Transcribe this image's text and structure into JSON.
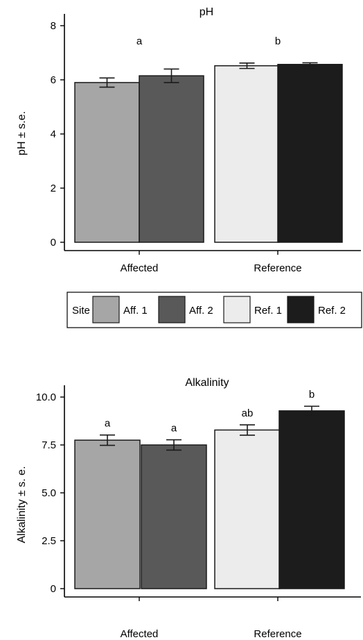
{
  "chart_data": [
    {
      "type": "bar",
      "title": "pH",
      "ylabel": "pH ± s.e.",
      "xlabel": "",
      "categories": [
        "Affected",
        "Reference"
      ],
      "ylim": [
        0,
        8
      ],
      "yticks": [
        0,
        2,
        4,
        6,
        8
      ],
      "ytick_labels": [
        "0",
        "2",
        "4",
        "6",
        "8"
      ],
      "bars": [
        {
          "site": "Aff. 1",
          "category": "Affected",
          "value": 5.9,
          "se": 0.17,
          "color": "#a6a6a6"
        },
        {
          "site": "Aff. 2",
          "category": "Affected",
          "value": 6.15,
          "se": 0.25,
          "color": "#595959"
        },
        {
          "site": "Ref. 1",
          "category": "Reference",
          "value": 6.52,
          "se": 0.1,
          "color": "#ececec"
        },
        {
          "site": "Ref. 2",
          "category": "Reference",
          "value": 6.57,
          "se": 0.06,
          "color": "#1c1c1c"
        }
      ],
      "group_labels": [
        {
          "category": "Affected",
          "text": "a"
        },
        {
          "category": "Reference",
          "text": "b"
        }
      ],
      "grid": false,
      "legend": "between-panels"
    },
    {
      "type": "bar",
      "title": "Alkalinity",
      "ylabel": "Alkalinity ± s. e.",
      "xlabel": "",
      "categories": [
        "Affected",
        "Reference"
      ],
      "ylim": [
        0,
        10
      ],
      "yticks": [
        0,
        2.5,
        5,
        7.5,
        10
      ],
      "ytick_labels": [
        "0",
        "2.5",
        "5.0",
        "7.5",
        "10.0"
      ],
      "bars": [
        {
          "site": "Aff. 1",
          "category": "Affected",
          "value": 7.75,
          "se": 0.27,
          "color": "#a6a6a6",
          "label": "a"
        },
        {
          "site": "Aff. 2",
          "category": "Affected",
          "value": 7.5,
          "se": 0.27,
          "color": "#595959",
          "label": "a"
        },
        {
          "site": "Ref. 1",
          "category": "Reference",
          "value": 8.28,
          "se": 0.27,
          "color": "#ececec",
          "label": "ab"
        },
        {
          "site": "Ref. 2",
          "category": "Reference",
          "value": 9.28,
          "se": 0.24,
          "color": "#1c1c1c",
          "label": "b"
        }
      ],
      "grid": false,
      "legend": "between-panels"
    }
  ],
  "legend": {
    "title": "Site",
    "entries": [
      {
        "label": "Aff. 1",
        "color": "#a6a6a6"
      },
      {
        "label": "Aff. 2",
        "color": "#595959"
      },
      {
        "label": "Ref. 1",
        "color": "#ececec"
      },
      {
        "label": "Ref. 2",
        "color": "#1c1c1c"
      }
    ]
  }
}
